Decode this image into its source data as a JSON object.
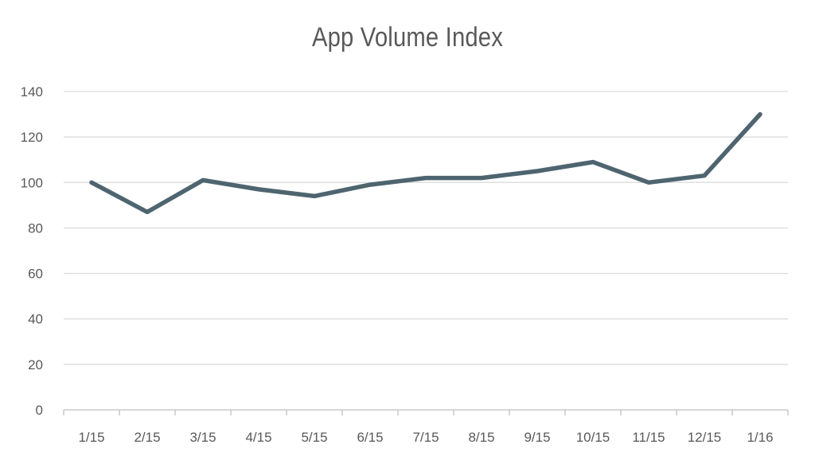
{
  "chart_data": {
    "type": "line",
    "title": "App Volume Index",
    "xlabel": "",
    "ylabel": "",
    "categories": [
      "1/15",
      "2/15",
      "3/15",
      "4/15",
      "5/15",
      "6/15",
      "7/15",
      "8/15",
      "9/15",
      "10/15",
      "11/15",
      "12/15",
      "1/16"
    ],
    "series": [
      {
        "values": [
          100,
          87,
          101,
          97,
          94,
          99,
          102,
          102,
          105,
          109,
          100,
          103,
          130
        ]
      }
    ],
    "ylim": [
      0,
      140
    ],
    "yticks": [
      0,
      20,
      40,
      60,
      80,
      100,
      120,
      140
    ],
    "grid": true,
    "legend": "none",
    "colors": {
      "line": "#4e6570",
      "grid": "#d9d9d9",
      "axis": "#bfbfbf",
      "text": "#595959"
    }
  }
}
